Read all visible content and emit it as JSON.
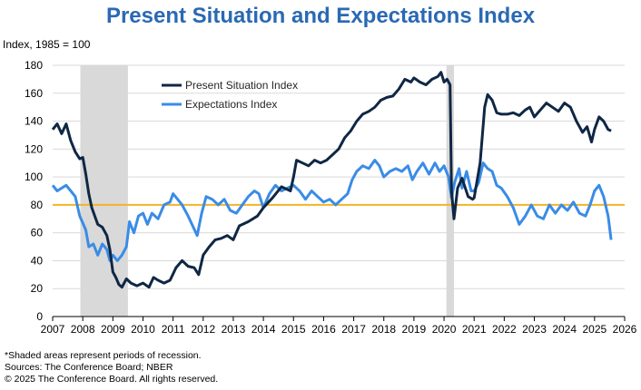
{
  "header": {
    "title": "Present Situation and Expectations Index",
    "y_unit_label": "Index, 1985 = 100"
  },
  "footnotes": {
    "line1": "*Shaded areas represent periods of recession.",
    "line2": "Sources: The Conference Board;  NBER",
    "line3": "© 2025 The Conference Board. All rights reserved."
  },
  "colors": {
    "present": "#0f2744",
    "expectations": "#3a8ce6",
    "reference_line": "#f5b326",
    "recession": "#d9d9d9",
    "grid": "#d9d9d9"
  },
  "chart_data": {
    "type": "line",
    "title": "Present Situation and Expectations Index",
    "ylabel": "Index, 1985 = 100",
    "xlabel": "",
    "xlim": [
      2007,
      2026
    ],
    "ylim": [
      0,
      180
    ],
    "x_ticks": [
      "2007",
      "2008",
      "2009",
      "2010",
      "2011",
      "2012",
      "2013",
      "2014",
      "2015",
      "2016",
      "2017",
      "2018",
      "2019",
      "2020",
      "2021",
      "2022",
      "2023",
      "2024",
      "2025",
      "2026"
    ],
    "y_ticks": [
      "0",
      "20",
      "40",
      "60",
      "80",
      "100",
      "120",
      "140",
      "160",
      "180"
    ],
    "grid": true,
    "legend_position": "top-center",
    "reference_line": 80,
    "recessions": [
      [
        2007.92,
        2009.5
      ],
      [
        2020.08,
        2020.33
      ]
    ],
    "series": [
      {
        "name": "Present Situation Index",
        "points": [
          [
            2007.0,
            134
          ],
          [
            2007.15,
            138
          ],
          [
            2007.3,
            131
          ],
          [
            2007.45,
            138
          ],
          [
            2007.6,
            126
          ],
          [
            2007.75,
            118
          ],
          [
            2007.9,
            113
          ],
          [
            2008.0,
            114
          ],
          [
            2008.1,
            102
          ],
          [
            2008.2,
            88
          ],
          [
            2008.3,
            78
          ],
          [
            2008.4,
            72
          ],
          [
            2008.5,
            66
          ],
          [
            2008.65,
            64
          ],
          [
            2008.8,
            58
          ],
          [
            2008.9,
            48
          ],
          [
            2009.0,
            32
          ],
          [
            2009.1,
            28
          ],
          [
            2009.2,
            23
          ],
          [
            2009.3,
            21
          ],
          [
            2009.45,
            27
          ],
          [
            2009.6,
            24
          ],
          [
            2009.8,
            22
          ],
          [
            2010.0,
            24
          ],
          [
            2010.2,
            21
          ],
          [
            2010.35,
            28
          ],
          [
            2010.5,
            26
          ],
          [
            2010.7,
            24
          ],
          [
            2010.9,
            26
          ],
          [
            2011.1,
            35
          ],
          [
            2011.3,
            40
          ],
          [
            2011.5,
            36
          ],
          [
            2011.7,
            35
          ],
          [
            2011.85,
            30
          ],
          [
            2012.0,
            44
          ],
          [
            2012.2,
            50
          ],
          [
            2012.4,
            55
          ],
          [
            2012.6,
            56
          ],
          [
            2012.8,
            58
          ],
          [
            2013.0,
            55
          ],
          [
            2013.2,
            65
          ],
          [
            2013.5,
            68
          ],
          [
            2013.8,
            72
          ],
          [
            2014.0,
            78
          ],
          [
            2014.3,
            85
          ],
          [
            2014.6,
            93
          ],
          [
            2014.9,
            90
          ],
          [
            2015.0,
            100
          ],
          [
            2015.1,
            112
          ],
          [
            2015.3,
            110
          ],
          [
            2015.5,
            108
          ],
          [
            2015.7,
            112
          ],
          [
            2015.9,
            110
          ],
          [
            2016.1,
            112
          ],
          [
            2016.3,
            116
          ],
          [
            2016.5,
            120
          ],
          [
            2016.7,
            128
          ],
          [
            2016.9,
            133
          ],
          [
            2017.1,
            140
          ],
          [
            2017.3,
            145
          ],
          [
            2017.5,
            147
          ],
          [
            2017.7,
            150
          ],
          [
            2017.9,
            155
          ],
          [
            2018.1,
            157
          ],
          [
            2018.3,
            158
          ],
          [
            2018.5,
            163
          ],
          [
            2018.7,
            170
          ],
          [
            2018.9,
            168
          ],
          [
            2019.0,
            171
          ],
          [
            2019.2,
            168
          ],
          [
            2019.4,
            166
          ],
          [
            2019.6,
            170
          ],
          [
            2019.8,
            172
          ],
          [
            2019.9,
            175
          ],
          [
            2020.0,
            168
          ],
          [
            2020.1,
            170
          ],
          [
            2020.2,
            166
          ],
          [
            2020.25,
            90
          ],
          [
            2020.33,
            70
          ],
          [
            2020.45,
            92
          ],
          [
            2020.6,
            99
          ],
          [
            2020.8,
            86
          ],
          [
            2020.95,
            84
          ],
          [
            2021.0,
            85
          ],
          [
            2021.2,
            110
          ],
          [
            2021.35,
            150
          ],
          [
            2021.45,
            159
          ],
          [
            2021.6,
            155
          ],
          [
            2021.75,
            146
          ],
          [
            2021.9,
            145
          ],
          [
            2022.1,
            145
          ],
          [
            2022.3,
            146
          ],
          [
            2022.5,
            144
          ],
          [
            2022.7,
            148
          ],
          [
            2022.85,
            150
          ],
          [
            2023.0,
            143
          ],
          [
            2023.2,
            148
          ],
          [
            2023.4,
            153
          ],
          [
            2023.6,
            150
          ],
          [
            2023.8,
            147
          ],
          [
            2024.0,
            153
          ],
          [
            2024.2,
            150
          ],
          [
            2024.4,
            140
          ],
          [
            2024.6,
            132
          ],
          [
            2024.75,
            136
          ],
          [
            2024.9,
            125
          ],
          [
            2025.0,
            134
          ],
          [
            2025.15,
            143
          ],
          [
            2025.3,
            140
          ],
          [
            2025.45,
            134
          ],
          [
            2025.55,
            133
          ]
        ]
      },
      {
        "name": "Expectations Index",
        "points": [
          [
            2007.0,
            94
          ],
          [
            2007.15,
            90
          ],
          [
            2007.3,
            92
          ],
          [
            2007.45,
            94
          ],
          [
            2007.6,
            90
          ],
          [
            2007.75,
            86
          ],
          [
            2007.9,
            72
          ],
          [
            2008.0,
            67
          ],
          [
            2008.1,
            62
          ],
          [
            2008.2,
            50
          ],
          [
            2008.35,
            52
          ],
          [
            2008.5,
            44
          ],
          [
            2008.65,
            52
          ],
          [
            2008.8,
            48
          ],
          [
            2008.9,
            40
          ],
          [
            2009.0,
            44
          ],
          [
            2009.15,
            40
          ],
          [
            2009.3,
            44
          ],
          [
            2009.45,
            50
          ],
          [
            2009.55,
            68
          ],
          [
            2009.7,
            60
          ],
          [
            2009.85,
            72
          ],
          [
            2010.0,
            74
          ],
          [
            2010.15,
            66
          ],
          [
            2010.3,
            74
          ],
          [
            2010.5,
            70
          ],
          [
            2010.7,
            80
          ],
          [
            2010.9,
            82
          ],
          [
            2011.0,
            88
          ],
          [
            2011.15,
            84
          ],
          [
            2011.3,
            80
          ],
          [
            2011.5,
            72
          ],
          [
            2011.65,
            65
          ],
          [
            2011.8,
            58
          ],
          [
            2011.95,
            74
          ],
          [
            2012.1,
            86
          ],
          [
            2012.3,
            84
          ],
          [
            2012.5,
            80
          ],
          [
            2012.7,
            84
          ],
          [
            2012.9,
            76
          ],
          [
            2013.1,
            74
          ],
          [
            2013.3,
            80
          ],
          [
            2013.5,
            86
          ],
          [
            2013.7,
            90
          ],
          [
            2013.85,
            88
          ],
          [
            2014.0,
            78
          ],
          [
            2014.2,
            88
          ],
          [
            2014.4,
            94
          ],
          [
            2014.6,
            90
          ],
          [
            2014.8,
            92
          ],
          [
            2015.0,
            94
          ],
          [
            2015.2,
            90
          ],
          [
            2015.4,
            84
          ],
          [
            2015.6,
            90
          ],
          [
            2015.8,
            86
          ],
          [
            2016.0,
            82
          ],
          [
            2016.2,
            84
          ],
          [
            2016.4,
            80
          ],
          [
            2016.6,
            84
          ],
          [
            2016.8,
            88
          ],
          [
            2016.95,
            98
          ],
          [
            2017.1,
            104
          ],
          [
            2017.3,
            108
          ],
          [
            2017.5,
            106
          ],
          [
            2017.7,
            112
          ],
          [
            2017.85,
            108
          ],
          [
            2018.0,
            100
          ],
          [
            2018.2,
            104
          ],
          [
            2018.4,
            106
          ],
          [
            2018.6,
            104
          ],
          [
            2018.8,
            108
          ],
          [
            2018.95,
            98
          ],
          [
            2019.1,
            104
          ],
          [
            2019.3,
            110
          ],
          [
            2019.5,
            102
          ],
          [
            2019.7,
            110
          ],
          [
            2019.85,
            104
          ],
          [
            2020.0,
            108
          ],
          [
            2020.15,
            100
          ],
          [
            2020.25,
            85
          ],
          [
            2020.35,
            96
          ],
          [
            2020.5,
            106
          ],
          [
            2020.6,
            92
          ],
          [
            2020.75,
            104
          ],
          [
            2020.9,
            90
          ],
          [
            2021.0,
            90
          ],
          [
            2021.15,
            96
          ],
          [
            2021.3,
            110
          ],
          [
            2021.45,
            106
          ],
          [
            2021.6,
            104
          ],
          [
            2021.75,
            94
          ],
          [
            2021.9,
            92
          ],
          [
            2022.1,
            86
          ],
          [
            2022.3,
            78
          ],
          [
            2022.5,
            66
          ],
          [
            2022.7,
            72
          ],
          [
            2022.9,
            80
          ],
          [
            2023.1,
            72
          ],
          [
            2023.3,
            70
          ],
          [
            2023.5,
            80
          ],
          [
            2023.7,
            74
          ],
          [
            2023.9,
            80
          ],
          [
            2024.1,
            76
          ],
          [
            2024.3,
            82
          ],
          [
            2024.5,
            74
          ],
          [
            2024.7,
            72
          ],
          [
            2024.85,
            80
          ],
          [
            2025.0,
            90
          ],
          [
            2025.15,
            94
          ],
          [
            2025.3,
            86
          ],
          [
            2025.45,
            72
          ],
          [
            2025.55,
            55
          ]
        ]
      }
    ]
  }
}
